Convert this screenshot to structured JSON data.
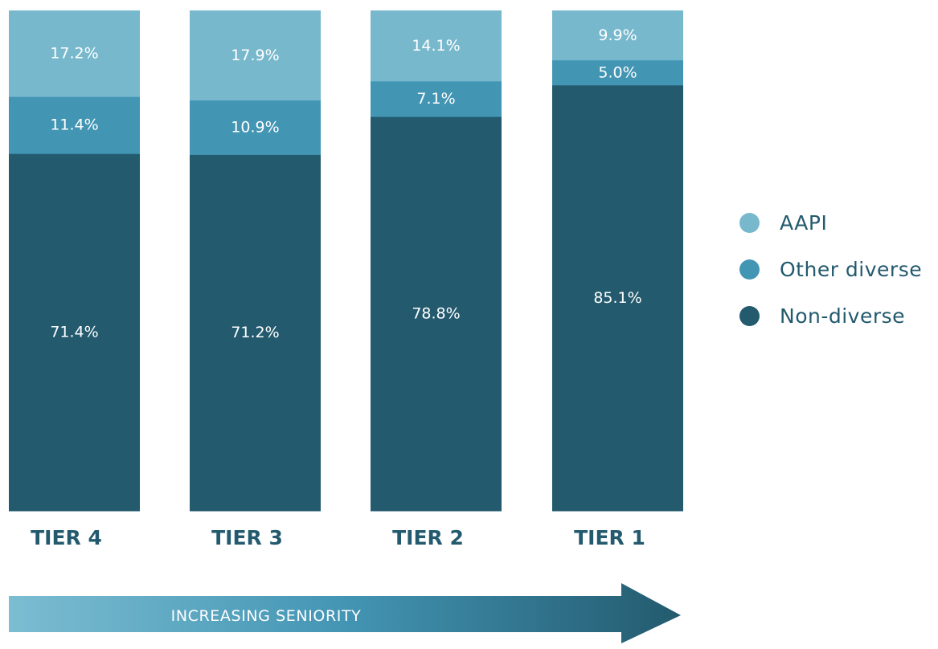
{
  "colors": {
    "aapi": "#78b8cd",
    "other_diverse": "#4395b4",
    "non_diverse": "#235a6e",
    "label": "#235a6e",
    "arrow_start": "#7cbdd1",
    "arrow_mid": "#4395b4",
    "arrow_end": "#235a6e"
  },
  "chart_data": {
    "type": "bar",
    "stacked": true,
    "categories": [
      "TIER 4",
      "TIER 3",
      "TIER 2",
      "TIER 1"
    ],
    "series": [
      {
        "name": "Non-diverse",
        "values": [
          71.4,
          71.2,
          78.8,
          85.1
        ],
        "labels": [
          "71.4%",
          "71.2%",
          "78.8%",
          "85.1%"
        ]
      },
      {
        "name": "Other diverse",
        "values": [
          11.4,
          10.9,
          7.1,
          5.0
        ],
        "labels": [
          "11.4%",
          "10.9%",
          "7.1%",
          "5.0%"
        ]
      },
      {
        "name": "AAPI",
        "values": [
          17.2,
          17.9,
          14.1,
          9.9
        ],
        "labels": [
          "17.2%",
          "17.9%",
          "14.1%",
          "9.9%"
        ]
      }
    ],
    "ylim": [
      0,
      100
    ],
    "grid": false,
    "legend_position": "right",
    "legend": [
      {
        "name": "AAPI",
        "color_key": "aapi"
      },
      {
        "name": "Other diverse",
        "color_key": "other_diverse"
      },
      {
        "name": "Non-diverse",
        "color_key": "non_diverse"
      }
    ],
    "annotation": "INCREASING SENIORITY"
  }
}
